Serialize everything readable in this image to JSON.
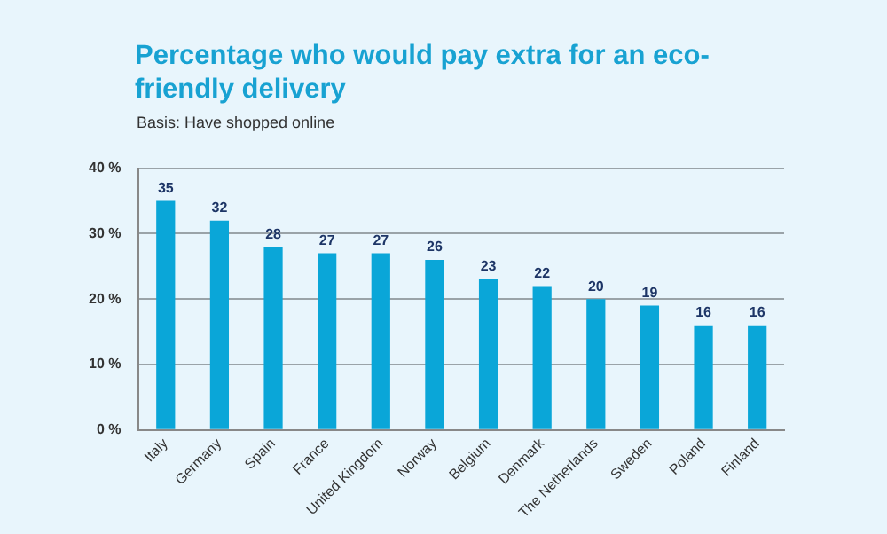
{
  "chart_data": {
    "type": "bar",
    "title": "Percentage who would pay extra for an eco-friendly delivery",
    "subtitle": "Basis: Have shopped online",
    "categories": [
      "Italy",
      "Germany",
      "Spain",
      "France",
      "United Kingdom",
      "Norway",
      "Belgium",
      "Denmark",
      "The Netherlands",
      "Sweden",
      "Poland",
      "Finland"
    ],
    "values": [
      35,
      32,
      28,
      27,
      27,
      26,
      23,
      22,
      20,
      19,
      16,
      16
    ],
    "color": "#0aa6d8",
    "ylim": [
      0,
      40
    ],
    "yticks": [
      {
        "value": 0,
        "label": "0 %"
      },
      {
        "value": 10,
        "label": "10 %"
      },
      {
        "value": 20,
        "label": "20 %"
      },
      {
        "value": 30,
        "label": "30 %"
      },
      {
        "value": 40,
        "label": "40 %"
      }
    ],
    "grid": "y",
    "data_labels": true
  }
}
